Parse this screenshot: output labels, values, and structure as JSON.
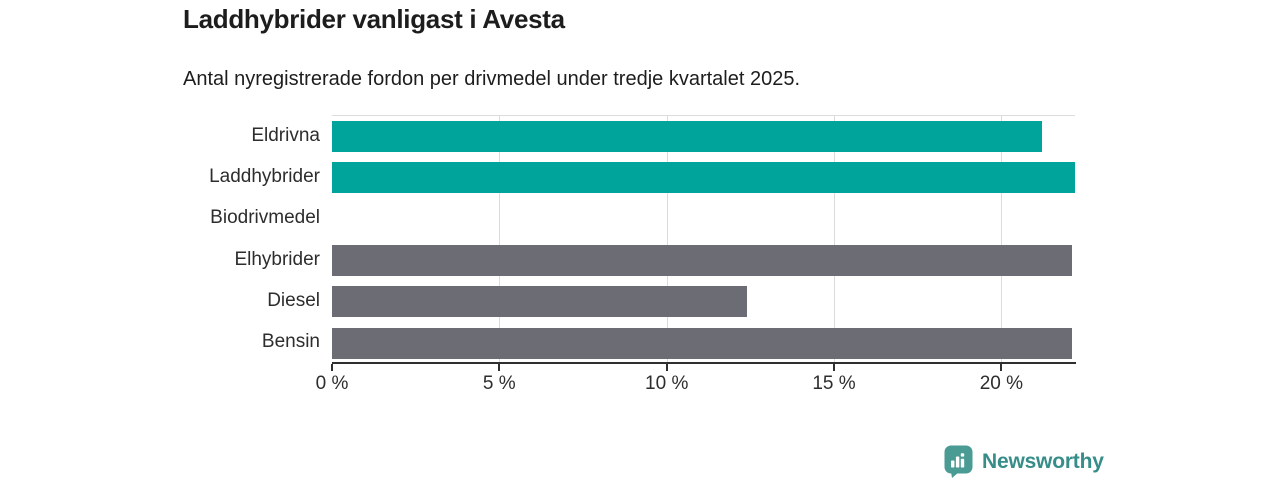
{
  "title": "Laddhybrider vanligast i Avesta",
  "subtitle": "Antal nyregistrerade fordon per drivmedel under tredje kvartalet 2025.",
  "chart_data": {
    "type": "bar",
    "orientation": "horizontal",
    "title": "Laddhybrider vanligast i Avesta",
    "subtitle": "Antal nyregistrerade fordon per drivmedel under tredje kvartalet 2025.",
    "categories": [
      "Eldrivna",
      "Laddhybrider",
      "Biodrivmedel",
      "Elhybrider",
      "Diesel",
      "Bensin"
    ],
    "values": [
      21.2,
      22.2,
      0,
      22.1,
      12.4,
      22.1
    ],
    "unit": "%",
    "xlabel": "",
    "ylabel": "",
    "xlim": [
      0,
      22.2
    ],
    "x_tick_values": [
      0,
      5,
      10,
      15,
      20
    ],
    "x_tick_labels": [
      "0 %",
      "5 %",
      "10 %",
      "15 %",
      "20 %"
    ],
    "grid": "vertical-only",
    "legend": "none",
    "value_labels": "none",
    "series_colors": [
      "#00A49A",
      "#00A49A",
      "#00A49A",
      "#6C6C74",
      "#6C6C74",
      "#6C6C74"
    ]
  },
  "branding": {
    "logo_text": "Newsworthy",
    "logo_icon": "bar-chart-speech-bubble",
    "icon_color": "#4A9B94",
    "text_color": "#368D89"
  },
  "colors": {
    "background": "#FFFFFF",
    "teal_bar": "#00A49A",
    "gray_bar": "#6C6C74",
    "axis_line": "#2F2F2F",
    "gridline": "#DCDCDC",
    "text_dark": "#1D1D1D",
    "text_axis": "#2D2D2D"
  }
}
